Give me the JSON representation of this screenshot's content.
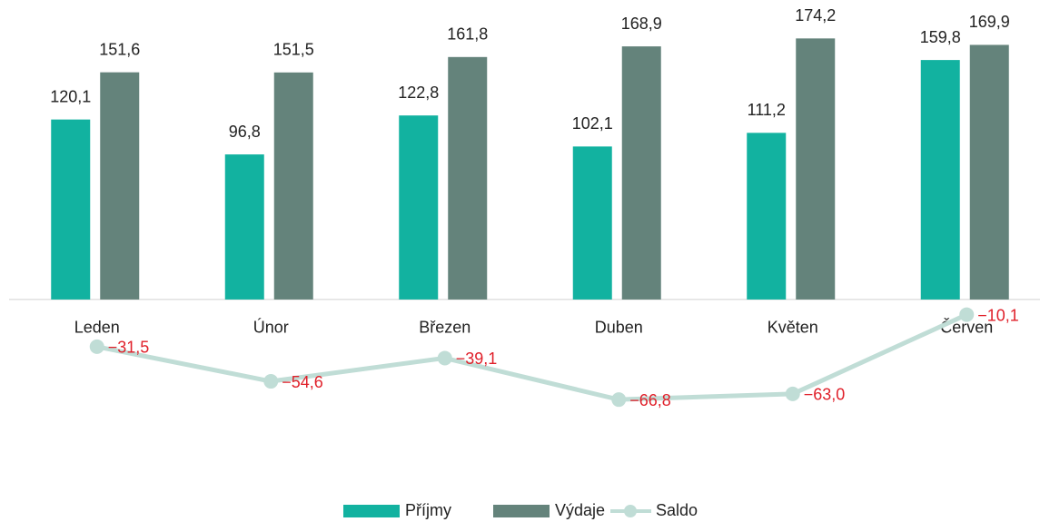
{
  "chart_data": {
    "type": "bar-line",
    "categories": [
      "Leden",
      "Únor",
      "Březen",
      "Duben",
      "Květen",
      "Červen"
    ],
    "series": [
      {
        "name": "Příjmy",
        "type": "bar",
        "color": "#12b2a0",
        "values": [
          120.1,
          96.8,
          122.8,
          102.1,
          111.2,
          159.8
        ],
        "value_labels": [
          "120,1",
          "96,8",
          "122,8",
          "102,1",
          "111,2",
          "159,8"
        ]
      },
      {
        "name": "Výdaje",
        "type": "bar",
        "color": "#64837b",
        "values": [
          151.6,
          151.5,
          161.8,
          168.9,
          174.2,
          169.9
        ],
        "value_labels": [
          "151,6",
          "151,5",
          "161,8",
          "168,9",
          "174,2",
          "169,9"
        ]
      },
      {
        "name": "Saldo",
        "type": "line",
        "color": "#c0ddd6",
        "label_color": "#e0202a",
        "values": [
          -31.5,
          -54.6,
          -39.1,
          -66.8,
          -63.0,
          -10.1
        ],
        "value_labels": [
          "−31,5",
          "−54,6",
          "−39,1",
          "−66,8",
          "−63,0",
          "−10,1"
        ]
      }
    ],
    "ylim": [
      -120,
      195
    ],
    "legend": "bottom"
  }
}
